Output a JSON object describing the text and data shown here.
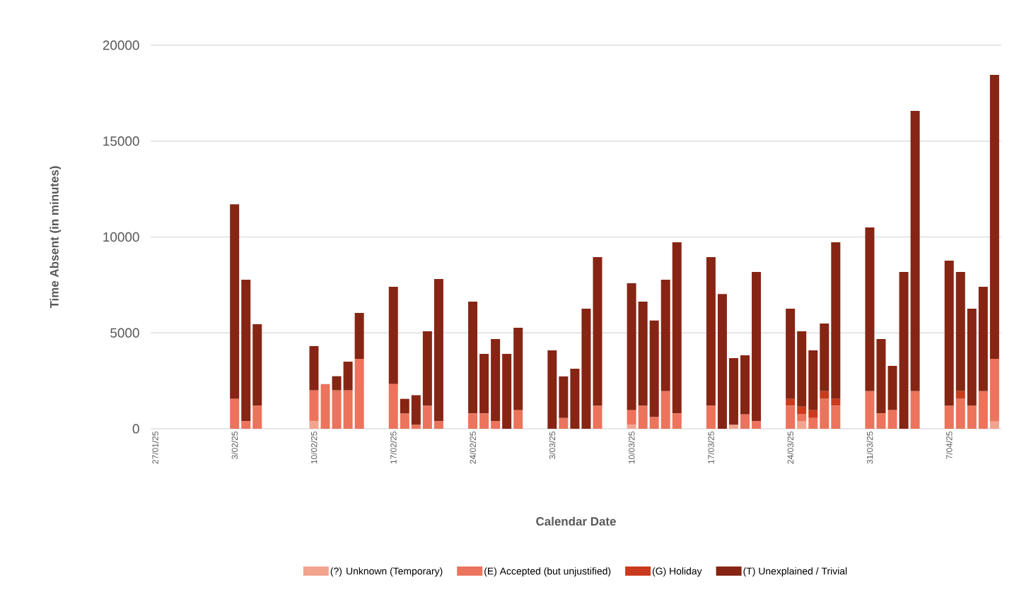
{
  "chart_data": {
    "type": "bar",
    "stacked": true,
    "xlabel": "Calendar Date",
    "ylabel": "Time Absent (in minutes)",
    "categories": [
      "27/01/25",
      null,
      null,
      null,
      null,
      null,
      null,
      "3/02/25",
      null,
      null,
      null,
      null,
      null,
      null,
      "10/02/25",
      null,
      null,
      null,
      null,
      null,
      null,
      "17/02/25",
      null,
      null,
      null,
      null,
      null,
      null,
      "24/02/25",
      null,
      null,
      null,
      null,
      null,
      null,
      "3/03/25",
      null,
      null,
      null,
      null,
      null,
      null,
      "10/03/25",
      null,
      null,
      null,
      null,
      null,
      null,
      "17/03/25",
      null,
      null,
      null,
      null,
      null,
      null,
      "24/03/25",
      null,
      null,
      null,
      null,
      null,
      null,
      "31/03/25",
      null,
      null,
      null,
      null,
      null,
      null,
      "7/04/25",
      null,
      null,
      null,
      null
    ],
    "ylim": [
      0,
      20000
    ],
    "yticks": [
      0,
      5000,
      10000,
      15000,
      20000
    ],
    "grid": "y",
    "legend": "bottom",
    "series": [
      {
        "name": "(?) Unknown (Temporary)",
        "color": "#f2a48e",
        "values": [
          null,
          null,
          null,
          null,
          null,
          null,
          null,
          0,
          0,
          0,
          null,
          null,
          null,
          null,
          400,
          0,
          0,
          0,
          0,
          null,
          null,
          0,
          0,
          0,
          0,
          0,
          null,
          null,
          0,
          0,
          0,
          0,
          0,
          null,
          null,
          0,
          0,
          0,
          0,
          0,
          null,
          null,
          200,
          0,
          0,
          0,
          0,
          null,
          null,
          0,
          0,
          200,
          0,
          0,
          null,
          null,
          0,
          380,
          0,
          0,
          0,
          null,
          null,
          0,
          0,
          0,
          0,
          0,
          null,
          null,
          0,
          0,
          0,
          0,
          380
        ]
      },
      {
        "name": "(E) Accepted (but unjustified)",
        "color": "#ec735c",
        "values": [
          null,
          null,
          null,
          null,
          null,
          null,
          null,
          1560,
          400,
          1200,
          null,
          null,
          null,
          null,
          1600,
          2330,
          2000,
          2000,
          3650,
          null,
          null,
          2330,
          790,
          200,
          1200,
          400,
          null,
          null,
          800,
          800,
          400,
          0,
          970,
          null,
          null,
          0,
          560,
          0,
          0,
          1200,
          null,
          null,
          770,
          1200,
          610,
          1960,
          800,
          null,
          null,
          1200,
          0,
          0,
          750,
          400,
          null,
          null,
          1200,
          370,
          560,
          1560,
          1200,
          null,
          null,
          1960,
          800,
          970,
          0,
          1960,
          null,
          null,
          1200,
          1560,
          1200,
          1960,
          3270
        ]
      },
      {
        "name": "(G) Holiday",
        "color": "#cc3a1e",
        "values": [
          null,
          null,
          null,
          null,
          null,
          null,
          null,
          0,
          0,
          0,
          null,
          null,
          null,
          null,
          0,
          0,
          0,
          0,
          0,
          null,
          null,
          0,
          0,
          0,
          0,
          0,
          null,
          null,
          0,
          0,
          0,
          0,
          0,
          null,
          null,
          0,
          0,
          0,
          0,
          0,
          null,
          null,
          0,
          0,
          0,
          0,
          0,
          null,
          null,
          0,
          0,
          0,
          0,
          0,
          null,
          null,
          360,
          400,
          410,
          400,
          360,
          null,
          null,
          0,
          0,
          0,
          0,
          0,
          null,
          null,
          0,
          400,
          0,
          0,
          0
        ]
      },
      {
        "name": "(T) Unexplained / Trivial",
        "color": "#862514",
        "values": [
          null,
          null,
          null,
          null,
          null,
          null,
          null,
          10140,
          7370,
          4250,
          null,
          null,
          null,
          null,
          2310,
          0,
          740,
          1500,
          2390,
          null,
          null,
          5070,
          770,
          1550,
          3880,
          7410,
          null,
          null,
          5830,
          3100,
          4280,
          3900,
          4300,
          null,
          null,
          4090,
          2170,
          3130,
          6260,
          7750,
          null,
          null,
          6620,
          5430,
          5030,
          5810,
          8920,
          null,
          null,
          7750,
          7030,
          3480,
          3080,
          7780,
          null,
          null,
          4700,
          3930,
          3120,
          3530,
          8160,
          null,
          null,
          8540,
          3880,
          2310,
          8180,
          14610,
          null,
          null,
          7570,
          6220,
          5060,
          5440,
          14800
        ]
      }
    ]
  }
}
